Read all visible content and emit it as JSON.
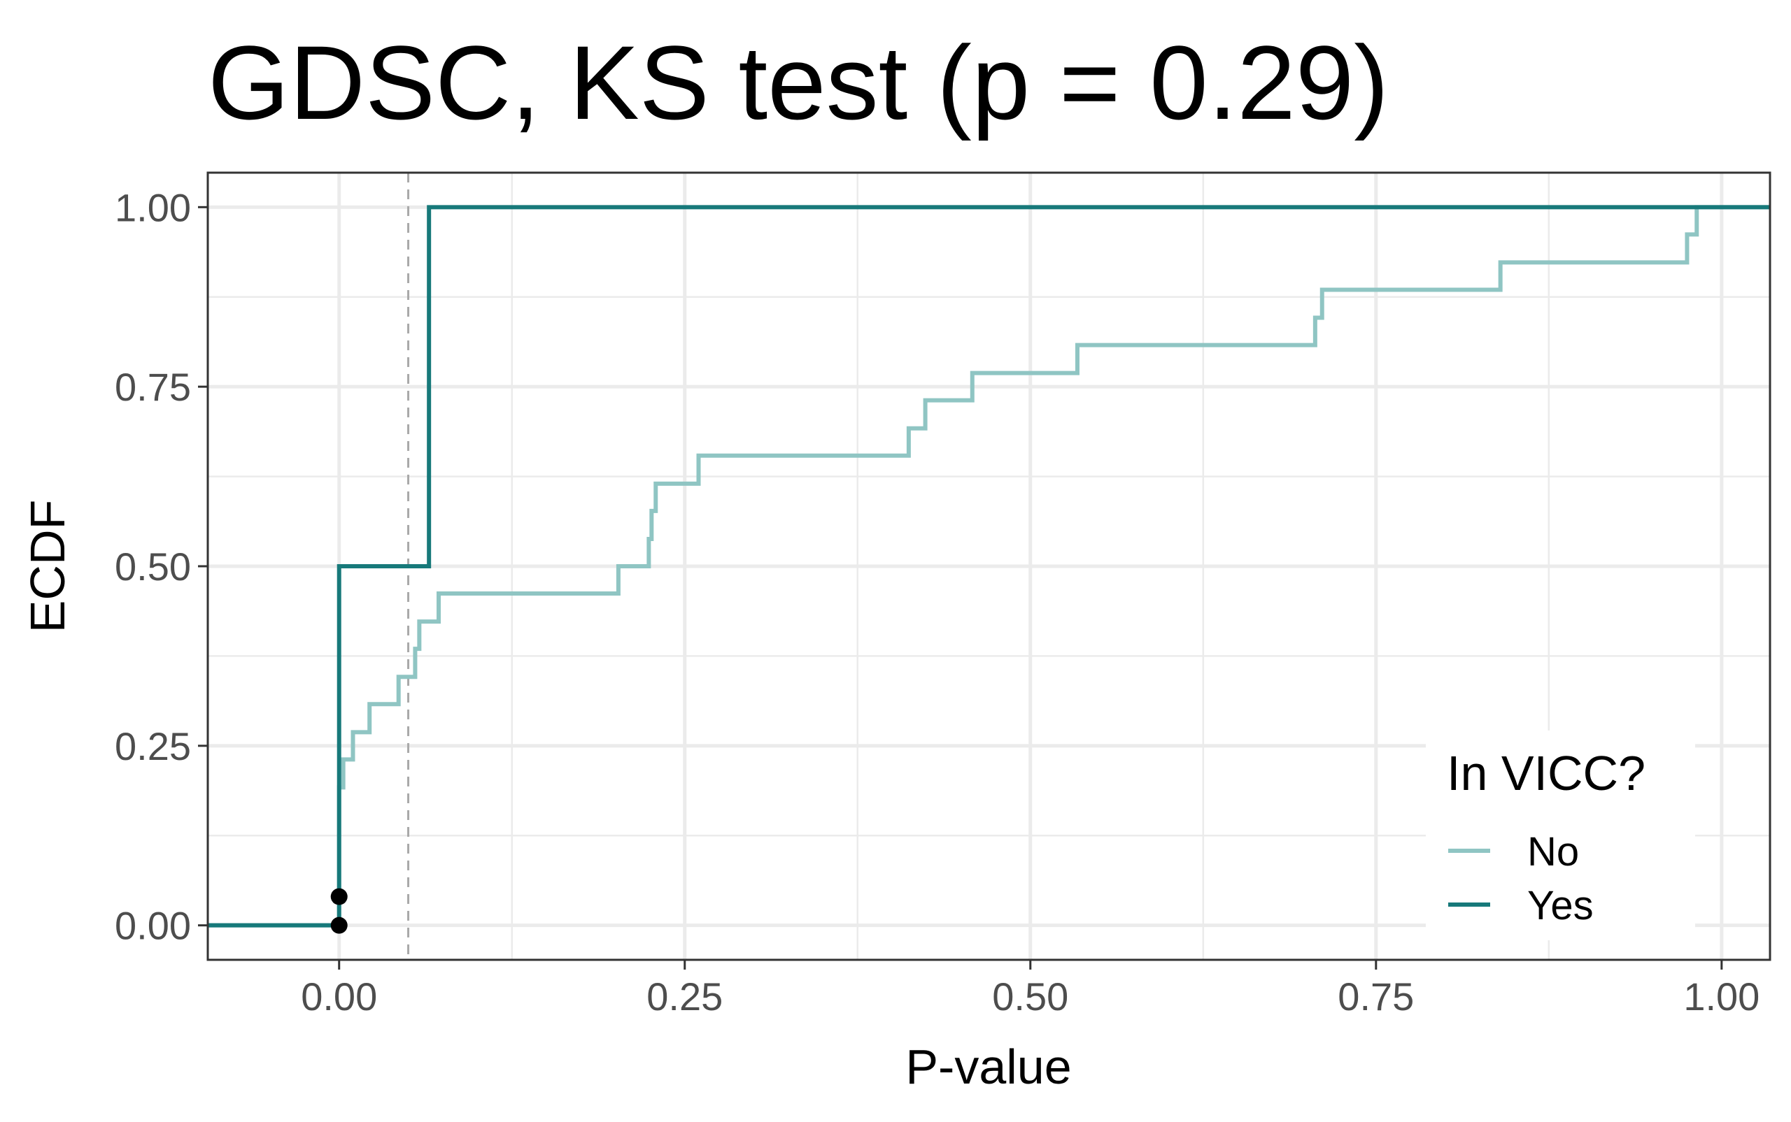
{
  "chart_data": {
    "type": "line",
    "step": true,
    "title": "GDSC, KS test (p = 0.29)",
    "xlabel": "P-value",
    "ylabel": "ECDF",
    "xlim": [
      -0.095,
      1.035
    ],
    "ylim": [
      -0.048,
      1.048
    ],
    "x_ticks": [
      0.0,
      0.25,
      0.5,
      0.75,
      1.0
    ],
    "x_tick_labels": [
      "0.00",
      "0.25",
      "0.50",
      "0.75",
      "1.00"
    ],
    "y_ticks": [
      0.0,
      0.25,
      0.5,
      0.75,
      1.0
    ],
    "y_tick_labels": [
      "0.00",
      "0.25",
      "0.50",
      "0.75",
      "1.00"
    ],
    "grid": true,
    "reference_line": {
      "x": 0.05,
      "style": "dashed",
      "color": "#a9a9a9"
    },
    "points": [
      {
        "x": 0.0,
        "y": 0.0
      },
      {
        "x": 0.0,
        "y": 0.04
      }
    ],
    "legend": {
      "title": "In VICC?",
      "position": "bottom-right"
    },
    "series": [
      {
        "name": "No",
        "color": "#8fc5c3",
        "x": [
          -0.095,
          0.0,
          0.0,
          0.003,
          0.01,
          0.022,
          0.043,
          0.055,
          0.058,
          0.072,
          0.202,
          0.224,
          0.226,
          0.229,
          0.26,
          0.412,
          0.424,
          0.458,
          0.534,
          0.706,
          0.711,
          0.84,
          0.975,
          0.982,
          1.035
        ],
        "y": [
          0.0,
          0.0,
          0.192,
          0.231,
          0.269,
          0.308,
          0.346,
          0.385,
          0.423,
          0.462,
          0.5,
          0.538,
          0.577,
          0.615,
          0.654,
          0.692,
          0.731,
          0.769,
          0.808,
          0.846,
          0.885,
          0.923,
          0.962,
          1.0,
          1.0
        ]
      },
      {
        "name": "Yes",
        "color": "#17797a",
        "x": [
          -0.095,
          0.0,
          0.0,
          0.065,
          0.065,
          1.035
        ],
        "y": [
          0.0,
          0.0,
          0.5,
          0.5,
          1.0,
          1.0
        ]
      }
    ]
  }
}
